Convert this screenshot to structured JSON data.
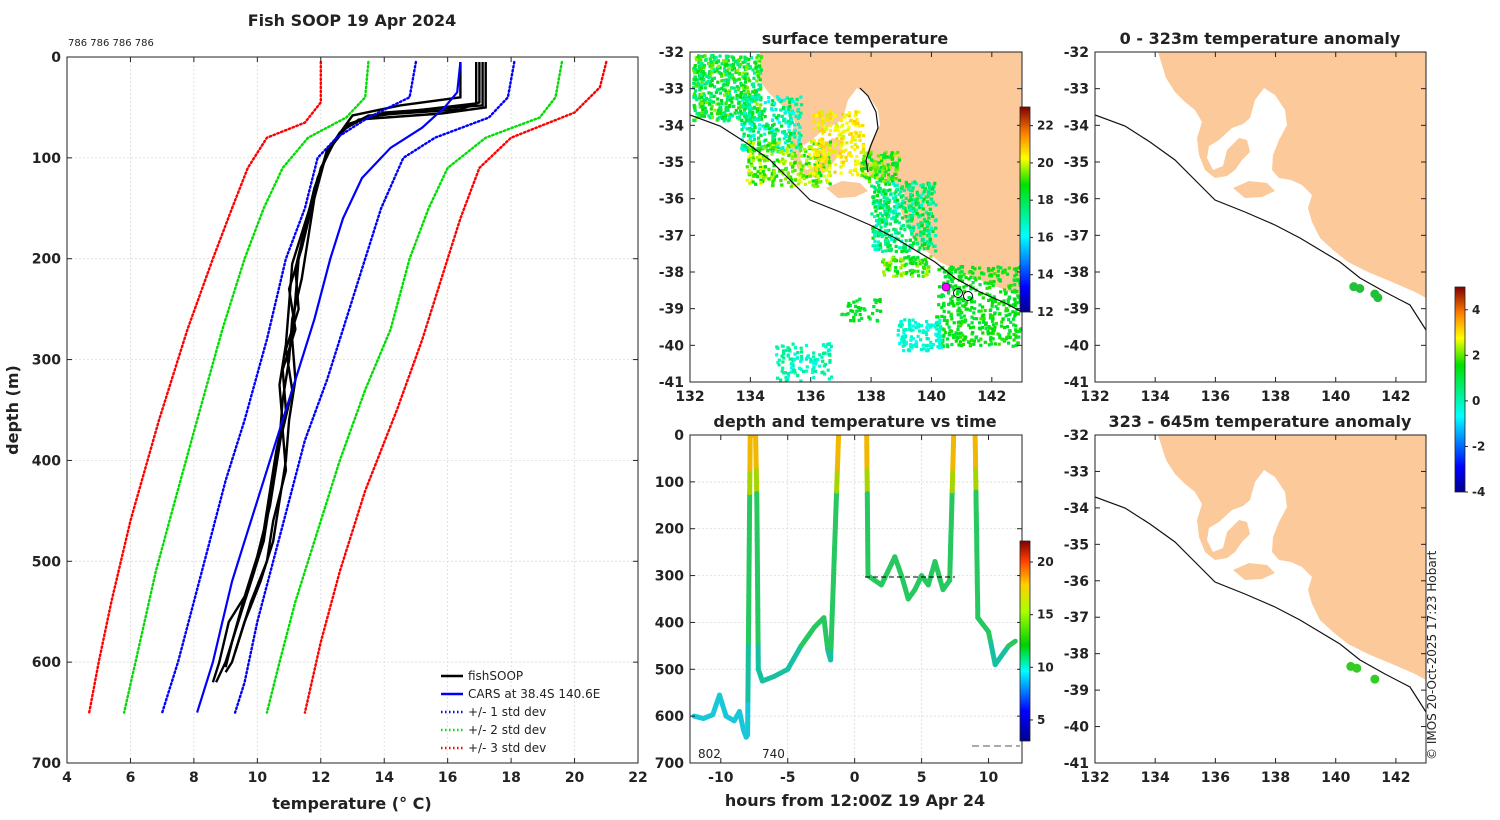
{
  "chart_data": [
    {
      "type": "line",
      "title": "Fish SOOP 19 Apr 2024",
      "top_annotation": "786 786 786 786",
      "xlabel": "temperature (° C)",
      "ylabel": "depth (m)",
      "xlim": [
        4,
        22
      ],
      "ylim": [
        700,
        0
      ],
      "xticks": [
        "4",
        "6",
        "8",
        "10",
        "12",
        "14",
        "16",
        "18",
        "20",
        "22"
      ],
      "yticks": [
        "0",
        "100",
        "200",
        "300",
        "400",
        "500",
        "600",
        "700"
      ],
      "legend_location": "bottom-right",
      "legend": [
        "fishSOOP",
        "CARS at 38.4S 140.6E",
        "+/- 1 std dev",
        "+/- 2 std dev",
        "+/- 3 std dev"
      ],
      "series": [
        {
          "name": "fishSOOP",
          "color": "#000000",
          "style": "solid",
          "profiles": [
            [
              [
                17.0,
                5
              ],
              [
                17.0,
                45
              ],
              [
                16.4,
                52
              ],
              [
                13.5,
                58
              ],
              [
                12.8,
                70
              ],
              [
                12.3,
                90
              ],
              [
                11.9,
                120
              ],
              [
                11.6,
                160
              ],
              [
                11.3,
                200
              ],
              [
                11.2,
                240
              ],
              [
                11.1,
                280
              ],
              [
                11.2,
                320
              ],
              [
                11.0,
                360
              ],
              [
                10.9,
                400
              ],
              [
                10.7,
                440
              ],
              [
                10.5,
                480
              ],
              [
                10.1,
                520
              ],
              [
                9.6,
                560
              ],
              [
                9.2,
                600
              ],
              [
                9.0,
                610
              ]
            ],
            [
              [
                17.2,
                5
              ],
              [
                17.2,
                50
              ],
              [
                15.8,
                56
              ],
              [
                13.2,
                62
              ],
              [
                12.6,
                75
              ],
              [
                12.2,
                95
              ],
              [
                11.8,
                130
              ],
              [
                11.5,
                170
              ],
              [
                11.2,
                210
              ],
              [
                11.3,
                250
              ],
              [
                10.9,
                290
              ],
              [
                11.1,
                330
              ],
              [
                10.8,
                370
              ],
              [
                10.9,
                410
              ],
              [
                10.5,
                460
              ],
              [
                10.3,
                500
              ],
              [
                9.8,
                540
              ],
              [
                9.3,
                590
              ]
            ],
            [
              [
                16.4,
                5
              ],
              [
                16.4,
                40
              ],
              [
                14.5,
                48
              ],
              [
                13.0,
                58
              ],
              [
                12.5,
                80
              ],
              [
                12.0,
                110
              ],
              [
                11.7,
                150
              ],
              [
                11.4,
                190
              ],
              [
                11.0,
                230
              ],
              [
                11.2,
                270
              ],
              [
                10.8,
                310
              ],
              [
                10.9,
                350
              ],
              [
                10.6,
                390
              ],
              [
                10.4,
                430
              ],
              [
                10.2,
                470
              ],
              [
                9.9,
                510
              ],
              [
                9.5,
                550
              ],
              [
                9.0,
                600
              ],
              [
                8.7,
                620
              ]
            ],
            [
              [
                17.1,
                5
              ],
              [
                17.1,
                48
              ],
              [
                14.0,
                55
              ],
              [
                12.9,
                66
              ],
              [
                12.4,
                85
              ],
              [
                12.1,
                105
              ],
              [
                11.8,
                140
              ],
              [
                11.6,
                180
              ],
              [
                11.4,
                220
              ],
              [
                11.1,
                260
              ],
              [
                11.0,
                300
              ],
              [
                10.8,
                340
              ],
              [
                10.7,
                380
              ],
              [
                10.5,
                420
              ],
              [
                10.2,
                480
              ],
              [
                9.7,
                530
              ],
              [
                9.1,
                560
              ],
              [
                8.8,
                600
              ],
              [
                8.6,
                620
              ]
            ],
            [
              [
                16.9,
                5
              ],
              [
                16.9,
                46
              ],
              [
                15.0,
                53
              ],
              [
                13.4,
                60
              ],
              [
                12.7,
                72
              ],
              [
                12.2,
                92
              ],
              [
                11.9,
                125
              ],
              [
                11.5,
                165
              ],
              [
                11.1,
                205
              ],
              [
                11.0,
                245
              ],
              [
                10.9,
                285
              ],
              [
                10.7,
                325
              ],
              [
                10.8,
                365
              ],
              [
                10.6,
                405
              ],
              [
                10.4,
                445
              ],
              [
                10.0,
                495
              ],
              [
                9.6,
                535
              ],
              [
                9.2,
                580
              ],
              [
                9.0,
                605
              ]
            ]
          ]
        },
        {
          "name": "CARS at 38.4S 140.6E",
          "color": "#0000ff",
          "style": "solid",
          "points": [
            [
              16.4,
              5
            ],
            [
              16.3,
              35
            ],
            [
              15.9,
              50
            ],
            [
              15.2,
              70
            ],
            [
              14.2,
              90
            ],
            [
              13.3,
              120
            ],
            [
              12.7,
              160
            ],
            [
              12.3,
              200
            ],
            [
              11.8,
              260
            ],
            [
              11.3,
              310
            ],
            [
              10.8,
              360
            ],
            [
              10.4,
              400
            ],
            [
              10.0,
              440
            ],
            [
              9.6,
              480
            ],
            [
              9.2,
              520
            ],
            [
              8.9,
              560
            ],
            [
              8.6,
              600
            ],
            [
              8.3,
              630
            ],
            [
              8.1,
              650
            ]
          ]
        },
        {
          "name": "-1 std",
          "color": "#0000ff",
          "style": "dotted",
          "points": [
            [
              15.0,
              5
            ],
            [
              14.8,
              40
            ],
            [
              13.5,
              60
            ],
            [
              12.5,
              80
            ],
            [
              11.9,
              100
            ],
            [
              11.5,
              150
            ],
            [
              10.9,
              200
            ],
            [
              10.3,
              280
            ],
            [
              9.6,
              360
            ],
            [
              9.0,
              420
            ],
            [
              8.5,
              480
            ],
            [
              8.0,
              540
            ],
            [
              7.5,
              600
            ],
            [
              7.0,
              650
            ]
          ]
        },
        {
          "name": "+1 std",
          "color": "#0000ff",
          "style": "dotted",
          "points": [
            [
              18.1,
              5
            ],
            [
              17.9,
              40
            ],
            [
              17.3,
              60
            ],
            [
              15.6,
              80
            ],
            [
              14.6,
              100
            ],
            [
              13.9,
              150
            ],
            [
              13.4,
              200
            ],
            [
              12.8,
              260
            ],
            [
              12.2,
              320
            ],
            [
              11.5,
              380
            ],
            [
              11.0,
              440
            ],
            [
              10.5,
              500
            ],
            [
              10.0,
              560
            ],
            [
              9.6,
              620
            ],
            [
              9.3,
              650
            ]
          ]
        },
        {
          "name": "-2 std",
          "color": "#00dd00",
          "style": "dotted",
          "points": [
            [
              13.5,
              5
            ],
            [
              13.4,
              40
            ],
            [
              12.8,
              60
            ],
            [
              11.6,
              80
            ],
            [
              10.8,
              110
            ],
            [
              10.2,
              150
            ],
            [
              9.6,
              200
            ],
            [
              8.9,
              270
            ],
            [
              8.1,
              360
            ],
            [
              7.4,
              440
            ],
            [
              6.8,
              510
            ],
            [
              6.3,
              580
            ],
            [
              5.8,
              650
            ]
          ]
        },
        {
          "name": "+2 std",
          "color": "#00dd00",
          "style": "dotted",
          "points": [
            [
              19.6,
              5
            ],
            [
              19.4,
              40
            ],
            [
              18.9,
              60
            ],
            [
              17.2,
              80
            ],
            [
              16.0,
              110
            ],
            [
              15.4,
              150
            ],
            [
              14.8,
              200
            ],
            [
              14.2,
              270
            ],
            [
              13.4,
              330
            ],
            [
              12.6,
              400
            ],
            [
              11.9,
              470
            ],
            [
              11.2,
              540
            ],
            [
              10.7,
              600
            ],
            [
              10.3,
              650
            ]
          ]
        },
        {
          "name": "-3 std",
          "color": "#ff0000",
          "style": "dotted",
          "points": [
            [
              12.0,
              5
            ],
            [
              12.0,
              45
            ],
            [
              11.5,
              65
            ],
            [
              10.3,
              80
            ],
            [
              9.7,
              110
            ],
            [
              9.2,
              150
            ],
            [
              8.6,
              200
            ],
            [
              7.8,
              270
            ],
            [
              6.9,
              360
            ],
            [
              6.0,
              460
            ],
            [
              5.4,
              540
            ],
            [
              5.0,
              600
            ],
            [
              4.7,
              650
            ]
          ]
        },
        {
          "name": "+3 std",
          "color": "#ff0000",
          "style": "dotted",
          "points": [
            [
              21.0,
              5
            ],
            [
              20.8,
              30
            ],
            [
              20.0,
              55
            ],
            [
              18.0,
              80
            ],
            [
              17.0,
              110
            ],
            [
              16.4,
              160
            ],
            [
              15.9,
              210
            ],
            [
              15.2,
              280
            ],
            [
              14.4,
              350
            ],
            [
              13.4,
              430
            ],
            [
              12.6,
              510
            ],
            [
              12.0,
              580
            ],
            [
              11.5,
              650
            ]
          ]
        }
      ]
    },
    {
      "type": "heatmap",
      "title": "surface temperature",
      "xlim": [
        132,
        143
      ],
      "ylim": [
        -41,
        -32
      ],
      "xticks": [
        "132",
        "134",
        "136",
        "138",
        "140",
        "142"
      ],
      "yticks": [
        "-32",
        "-33",
        "-34",
        "-35",
        "-36",
        "-37",
        "-38",
        "-39",
        "-40",
        "-41"
      ],
      "colorbar_range": [
        12,
        23
      ],
      "colorbar_ticks": [
        "12",
        "14",
        "16",
        "18",
        "20",
        "22"
      ]
    },
    {
      "type": "scatter",
      "title": "depth and temperature vs time",
      "xlabel": "hours from 12:00Z 19 Apr 24",
      "xlim": [
        -12.3,
        12.5
      ],
      "ylim": [
        700,
        0
      ],
      "xticks": [
        "-10",
        "-5",
        "0",
        "5",
        "10"
      ],
      "yticks": [
        "0",
        "100",
        "200",
        "300",
        "400",
        "500",
        "600",
        "700"
      ],
      "annotations": [
        "802",
        "740"
      ],
      "colorbar_range": [
        3,
        22
      ],
      "colorbar_ticks": [
        "5",
        "10",
        "15",
        "20"
      ]
    },
    {
      "type": "scatter",
      "title": "0 - 323m temperature anomaly",
      "xlim": [
        132,
        143
      ],
      "ylim": [
        -41,
        -32
      ],
      "xticks": [
        "132",
        "134",
        "136",
        "138",
        "140",
        "142"
      ],
      "yticks": [
        "-32",
        "-33",
        "-34",
        "-35",
        "-36",
        "-37",
        "-38",
        "-39",
        "-40",
        "-41"
      ],
      "points": [
        [
          140.6,
          -38.4
        ],
        [
          140.8,
          -38.45
        ],
        [
          141.3,
          -38.6
        ],
        [
          141.4,
          -38.7
        ]
      ]
    },
    {
      "type": "scatter",
      "title": "323 - 645m temperature anomaly",
      "xlim": [
        132,
        143
      ],
      "ylim": [
        -41,
        -32
      ],
      "xticks": [
        "132",
        "134",
        "136",
        "138",
        "140",
        "142"
      ],
      "yticks": [
        "-32",
        "-33",
        "-34",
        "-35",
        "-36",
        "-37",
        "-38",
        "-39",
        "-40",
        "-41"
      ],
      "points": [
        [
          140.5,
          -38.35
        ],
        [
          140.7,
          -38.4
        ],
        [
          141.3,
          -38.7
        ]
      ],
      "colorbar_range": [
        -4,
        5
      ],
      "colorbar_ticks": [
        "-4",
        "-2",
        "0",
        "2",
        "4"
      ]
    }
  ],
  "credit": "© IMOS 20-Oct-2025 17:23 Hobart"
}
